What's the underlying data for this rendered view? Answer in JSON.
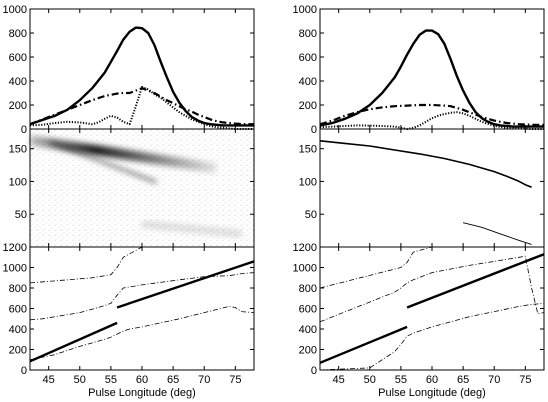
{
  "chart_data": [
    {
      "type": "line",
      "panel": "left-top",
      "x_range": [
        42,
        78
      ],
      "ylim": [
        0,
        1000
      ],
      "y_ticks": [
        "0",
        "200",
        "400",
        "600",
        "800",
        "1000"
      ],
      "series": [
        {
          "style": "solid-thick",
          "x": [
            42,
            44,
            46,
            48,
            50,
            52,
            54,
            55,
            56,
            57,
            58,
            59,
            60,
            61,
            62,
            63,
            64,
            65,
            66,
            67,
            68,
            69,
            70,
            71,
            72,
            73,
            74,
            75,
            76,
            78
          ],
          "y": [
            40,
            75,
            110,
            160,
            240,
            340,
            470,
            560,
            650,
            745,
            810,
            845,
            840,
            800,
            700,
            560,
            430,
            310,
            220,
            150,
            100,
            70,
            50,
            40,
            35,
            30,
            30,
            30,
            30,
            30
          ]
        },
        {
          "style": "dash-dot-thick",
          "x": [
            42,
            44,
            46,
            48,
            50,
            52,
            54,
            56,
            57,
            58,
            59,
            60,
            61,
            62,
            63,
            64,
            65,
            66,
            67,
            68,
            69,
            70,
            71,
            72,
            73,
            74,
            75,
            76,
            77,
            78
          ],
          "y": [
            40,
            80,
            120,
            160,
            200,
            240,
            275,
            295,
            300,
            300,
            320,
            340,
            320,
            300,
            270,
            240,
            215,
            190,
            165,
            145,
            120,
            100,
            80,
            65,
            55,
            50,
            45,
            42,
            40,
            40
          ]
        },
        {
          "style": "dotted",
          "x": [
            42,
            44,
            46,
            48,
            50,
            52,
            53,
            54,
            55,
            56,
            57,
            58,
            59,
            60,
            61,
            62,
            63,
            64,
            65,
            66,
            67,
            68,
            69,
            70,
            71,
            72,
            73,
            74,
            75,
            78
          ],
          "y": [
            30,
            35,
            50,
            60,
            55,
            40,
            55,
            85,
            110,
            95,
            60,
            40,
            190,
            350,
            330,
            290,
            260,
            220,
            180,
            140,
            110,
            80,
            60,
            40,
            25,
            15,
            10,
            5,
            0,
            0
          ]
        }
      ]
    },
    {
      "type": "heatmap",
      "panel": "left-middle",
      "x_range": [
        42,
        78
      ],
      "ylim": [
        0,
        180
      ],
      "y_ticks": [
        "50",
        "100",
        "150"
      ],
      "ridge": {
        "x": [
          42,
          72
        ],
        "y": [
          163,
          120
        ]
      },
      "faint_track": {
        "x": [
          60,
          76
        ],
        "y": [
          35,
          20
        ]
      }
    },
    {
      "type": "line",
      "panel": "left-bottom",
      "x_range": [
        42,
        78
      ],
      "ylim": [
        0,
        1200
      ],
      "y_ticks": [
        "0",
        "200",
        "400",
        "600",
        "800",
        "1000",
        "1200"
      ],
      "series": [
        {
          "style": "solid-thick",
          "x": [
            42,
            56
          ],
          "y": [
            85,
            460
          ]
        },
        {
          "style": "solid-thick",
          "x": [
            56,
            78
          ],
          "y": [
            610,
            1060
          ]
        },
        {
          "style": "dash-dot-thin",
          "x": [
            42,
            52,
            55,
            56,
            57,
            60,
            66,
            70,
            75,
            76,
            78
          ],
          "y": [
            850,
            900,
            930,
            1000,
            1100,
            1200,
            1200,
            1200,
            1200,
            1200,
            1200
          ]
        },
        {
          "style": "dash-dot-thin",
          "x": [
            42,
            44,
            50,
            53,
            55,
            56,
            57,
            60,
            66,
            70,
            74,
            76,
            78
          ],
          "y": [
            490,
            500,
            560,
            610,
            650,
            730,
            800,
            830,
            880,
            910,
            920,
            940,
            950
          ]
        },
        {
          "style": "dash-dot-thin",
          "x": [
            42,
            46,
            50,
            54,
            55,
            56,
            57,
            58,
            60,
            66,
            70,
            74,
            75,
            76,
            78
          ],
          "y": [
            100,
            150,
            230,
            300,
            320,
            350,
            380,
            400,
            420,
            500,
            560,
            620,
            610,
            570,
            560
          ]
        }
      ]
    },
    {
      "type": "line",
      "panel": "right-top",
      "x_range": [
        42,
        78
      ],
      "ylim": [
        0,
        1000
      ],
      "y_ticks": [
        "0",
        "200",
        "400",
        "600",
        "800",
        "1000"
      ],
      "series": [
        {
          "style": "solid-thick",
          "x": [
            42,
            44,
            46,
            48,
            50,
            52,
            54,
            55,
            56,
            57,
            58,
            59,
            60,
            61,
            62,
            63,
            64,
            65,
            66,
            67,
            68,
            69,
            70,
            71,
            72,
            73,
            74,
            75,
            76,
            78
          ],
          "y": [
            30,
            50,
            85,
            130,
            200,
            300,
            430,
            520,
            620,
            710,
            785,
            820,
            820,
            790,
            710,
            580,
            440,
            320,
            220,
            140,
            90,
            60,
            40,
            30,
            25,
            20,
            20,
            20,
            20,
            20
          ]
        },
        {
          "style": "dash-dot-thick",
          "x": [
            42,
            44,
            46,
            48,
            50,
            52,
            54,
            56,
            58,
            60,
            62,
            63,
            64,
            65,
            66,
            67,
            68,
            70,
            72,
            74,
            76,
            78
          ],
          "y": [
            40,
            70,
            110,
            140,
            165,
            180,
            190,
            195,
            200,
            200,
            195,
            190,
            175,
            160,
            140,
            120,
            100,
            70,
            50,
            40,
            35,
            35
          ]
        },
        {
          "style": "dotted",
          "x": [
            42,
            44,
            46,
            48,
            50,
            52,
            54,
            55,
            56,
            57,
            58,
            59,
            60,
            61,
            62,
            63,
            64,
            65,
            66,
            67,
            68,
            70,
            72,
            74,
            76,
            78
          ],
          "y": [
            15,
            20,
            25,
            30,
            28,
            25,
            20,
            10,
            0,
            10,
            30,
            60,
            90,
            110,
            125,
            135,
            140,
            130,
            110,
            85,
            60,
            25,
            10,
            5,
            0,
            0
          ]
        }
      ]
    },
    {
      "type": "line",
      "panel": "right-middle",
      "x_range": [
        42,
        78
      ],
      "ylim": [
        0,
        180
      ],
      "y_ticks": [
        "50",
        "100",
        "150"
      ],
      "series": [
        {
          "style": "solid",
          "x": [
            42,
            46,
            50,
            54,
            58,
            62,
            66,
            70,
            72,
            74,
            75,
            76
          ],
          "y": [
            162,
            158,
            154,
            148,
            142,
            135,
            126,
            115,
            108,
            100,
            95,
            91
          ]
        },
        {
          "style": "solid-thin",
          "x": [
            65,
            68,
            71,
            74,
            76
          ],
          "y": [
            37,
            30,
            20,
            10,
            4
          ]
        }
      ]
    },
    {
      "type": "line",
      "panel": "right-bottom",
      "x_range": [
        42,
        78
      ],
      "xlabel": "Pulse Longitude (deg)",
      "x_ticks": [
        "45",
        "50",
        "55",
        "60",
        "65",
        "70",
        "75"
      ],
      "ylim": [
        0,
        1200
      ],
      "y_ticks": [
        "0",
        "200",
        "400",
        "600",
        "800",
        "1000",
        "1200"
      ],
      "series": [
        {
          "style": "solid-thick",
          "x": [
            42,
            56
          ],
          "y": [
            70,
            420
          ]
        },
        {
          "style": "solid-thick",
          "x": [
            56,
            78
          ],
          "y": [
            610,
            1130
          ]
        },
        {
          "style": "dash-dot-thin",
          "x": [
            42,
            55,
            56,
            57,
            60,
            70,
            78
          ],
          "y": [
            800,
            1000,
            1050,
            1150,
            1200,
            1200,
            1200
          ]
        },
        {
          "style": "dash-dot-thin",
          "x": [
            42,
            54,
            55,
            56,
            57,
            60,
            66,
            70,
            74,
            75,
            76,
            77,
            78
          ],
          "y": [
            470,
            760,
            800,
            850,
            880,
            950,
            1020,
            1060,
            1100,
            1110,
            800,
            550,
            560
          ]
        },
        {
          "style": "dash-dot-thin",
          "x": [
            42,
            50,
            54,
            55,
            56,
            57,
            60,
            66,
            70,
            74,
            76,
            78
          ],
          "y": [
            0,
            20,
            180,
            250,
            330,
            360,
            420,
            520,
            570,
            620,
            640,
            650
          ]
        }
      ]
    }
  ],
  "left_xlabel": "Pulse Longitude (deg)",
  "left_x_ticks": [
    "45",
    "50",
    "55",
    "60",
    "65",
    "70",
    "75"
  ]
}
